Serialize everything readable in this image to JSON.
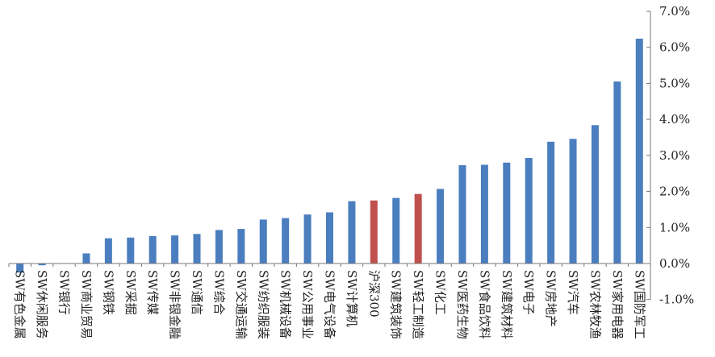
{
  "chart_data": {
    "type": "bar",
    "title": "",
    "xlabel": "",
    "ylabel": "",
    "ylim": [
      -1.0,
      7.0
    ],
    "yticks": [
      "7.0%",
      "6.0%",
      "5.0%",
      "4.0%",
      "3.0%",
      "2.0%",
      "1.0%",
      "0.0%",
      "-1.0%"
    ],
    "ytick_values": [
      7,
      6,
      5,
      4,
      3,
      2,
      1,
      0,
      -1
    ],
    "axis_position": "right",
    "grid": false,
    "legend": "none",
    "colors": {
      "default": "#4a7ebf",
      "highlight": "#c0504d"
    },
    "categories": [
      "SW有色金属",
      "SW休闲服务",
      "SW银行",
      "SW商业贸易",
      "SW钢铁",
      "SW采掘",
      "SW传媒",
      "SW非银金融",
      "SW通信",
      "SW综合",
      "SW交通运输",
      "SW纺织服装",
      "SW机械设备",
      "SW公用事业",
      "SW电气设备",
      "SW计算机",
      "沪深300",
      "SW建筑装饰",
      "SW轻工制造",
      "SW化工",
      "SW医药生物",
      "SW食品饮料",
      "SW建筑材料",
      "SW电子",
      "SW房地产",
      "SW汽车",
      "SW农林牧渔",
      "SW家用电器",
      "SW国防军工"
    ],
    "values": [
      -0.25,
      -0.05,
      0.0,
      0.28,
      0.7,
      0.72,
      0.76,
      0.78,
      0.82,
      0.93,
      0.96,
      1.22,
      1.26,
      1.36,
      1.42,
      1.73,
      1.75,
      1.82,
      1.93,
      2.07,
      2.73,
      2.74,
      2.8,
      2.93,
      3.38,
      3.46,
      3.84,
      5.05,
      6.24
    ],
    "highlighted": [
      "沪深300",
      "SW轻工制造"
    ]
  }
}
